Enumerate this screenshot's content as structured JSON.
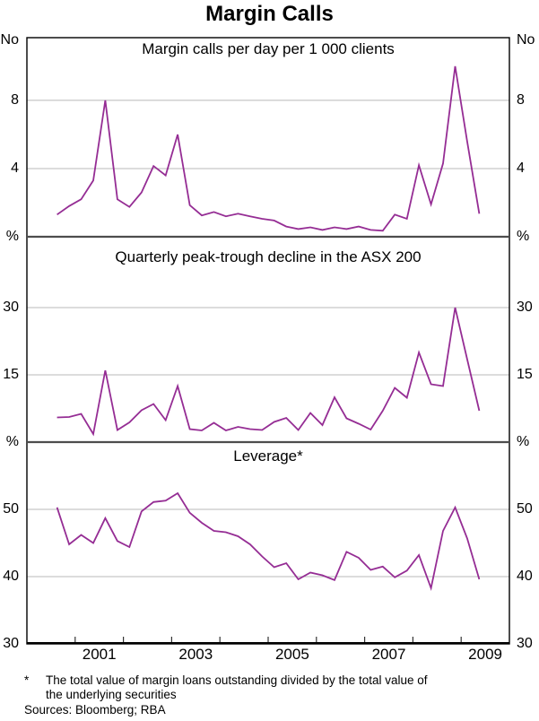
{
  "title": "Margin Calls",
  "footnote": {
    "marker": "*",
    "line1": "The total value of margin loans outstanding divided by the total value of",
    "line2": "the underlying securities",
    "sources": "Sources: Bloomberg; RBA"
  },
  "colors": {
    "line": "#952d94",
    "grid": "#b9b9b9",
    "frame": "#000000",
    "separator": "#4d4d4d",
    "tick": "#333333"
  },
  "chart_data": {
    "type": "line",
    "x_axis": {
      "range": [
        2000,
        2010
      ],
      "first_point": 2000.625,
      "step": 0.25,
      "tick_years": [
        2001,
        2002,
        2003,
        2004,
        2005,
        2006,
        2007,
        2008,
        2009
      ],
      "year_labels": [
        "2001",
        "2003",
        "2005",
        "2007",
        "2009"
      ],
      "label_positions": [
        2001.5,
        2003.5,
        2005.5,
        2007.5,
        2009.5
      ]
    },
    "panels": [
      {
        "title": "Margin calls per day per 1 000 clients",
        "unit": "No",
        "ylim": [
          0,
          11.68
        ],
        "yticks": [
          4,
          8
        ],
        "values": [
          1.3,
          1.8,
          2.2,
          3.3,
          8.0,
          2.2,
          1.75,
          2.6,
          4.15,
          3.6,
          6.0,
          1.85,
          1.25,
          1.45,
          1.2,
          1.35,
          1.2,
          1.05,
          0.95,
          0.6,
          0.45,
          0.55,
          0.4,
          0.55,
          0.45,
          0.6,
          0.4,
          0.35,
          1.3,
          1.05,
          4.2,
          1.9,
          4.3,
          10.0,
          5.6,
          1.35
        ]
      },
      {
        "title": "Quarterly peak-trough decline in the ASX 200",
        "unit": "%",
        "ylim": [
          0,
          45.8
        ],
        "yticks": [
          15,
          30
        ],
        "values": [
          5.5,
          5.6,
          6.3,
          1.8,
          16.0,
          2.7,
          4.4,
          7.1,
          8.5,
          4.9,
          12.5,
          2.9,
          2.6,
          4.3,
          2.6,
          3.4,
          2.9,
          2.7,
          4.5,
          5.4,
          2.7,
          6.5,
          3.8,
          10.0,
          5.3,
          4.1,
          2.8,
          7.0,
          12.1,
          9.9,
          20.0,
          12.9,
          12.5,
          30.0,
          18.5,
          7.0
        ]
      },
      {
        "title": "Leverage*",
        "unit": "%",
        "ylim": [
          30,
          60
        ],
        "yticks": [
          30,
          40,
          50
        ],
        "values": [
          50.3,
          44.8,
          46.2,
          45.0,
          48.7,
          45.3,
          44.4,
          49.7,
          51.1,
          51.3,
          52.4,
          49.5,
          48.0,
          46.8,
          46.6,
          46.0,
          44.8,
          43.0,
          41.4,
          42.0,
          39.6,
          40.6,
          40.2,
          39.5,
          43.7,
          42.8,
          41.0,
          41.5,
          39.9,
          40.9,
          43.2,
          38.3,
          46.8,
          50.3,
          45.7,
          39.6
        ]
      }
    ]
  }
}
